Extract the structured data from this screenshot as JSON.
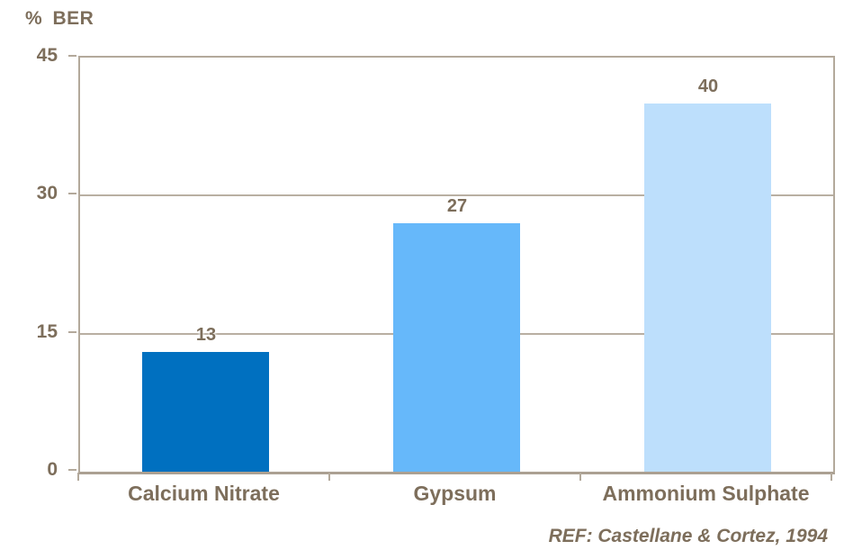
{
  "chart": {
    "axis_title": "% BER",
    "reference": "REF: Castellane & Cortez, 1994"
  },
  "chart_data": {
    "type": "bar",
    "title": "% BER",
    "categories": [
      "Calcium Nitrate",
      "Gypsum",
      "Ammonium Sulphate"
    ],
    "values": [
      13,
      27,
      40
    ],
    "data_labels": [
      "13",
      "27",
      "40"
    ],
    "bar_colors": [
      "#0070c0",
      "#66b8fa",
      "#bddffc"
    ],
    "xlabel": "",
    "ylabel": "% BER",
    "ylim": [
      0,
      45
    ],
    "yticks": [
      0,
      15,
      30,
      45
    ],
    "grid": "horizontal",
    "legend": "none",
    "annotation": "REF: Castellane & Cortez, 1994",
    "colors": {
      "text": "#7d6e5b",
      "axis": "#b3a99b",
      "gridline": "#b9afa2",
      "background": "#ffffff"
    }
  }
}
